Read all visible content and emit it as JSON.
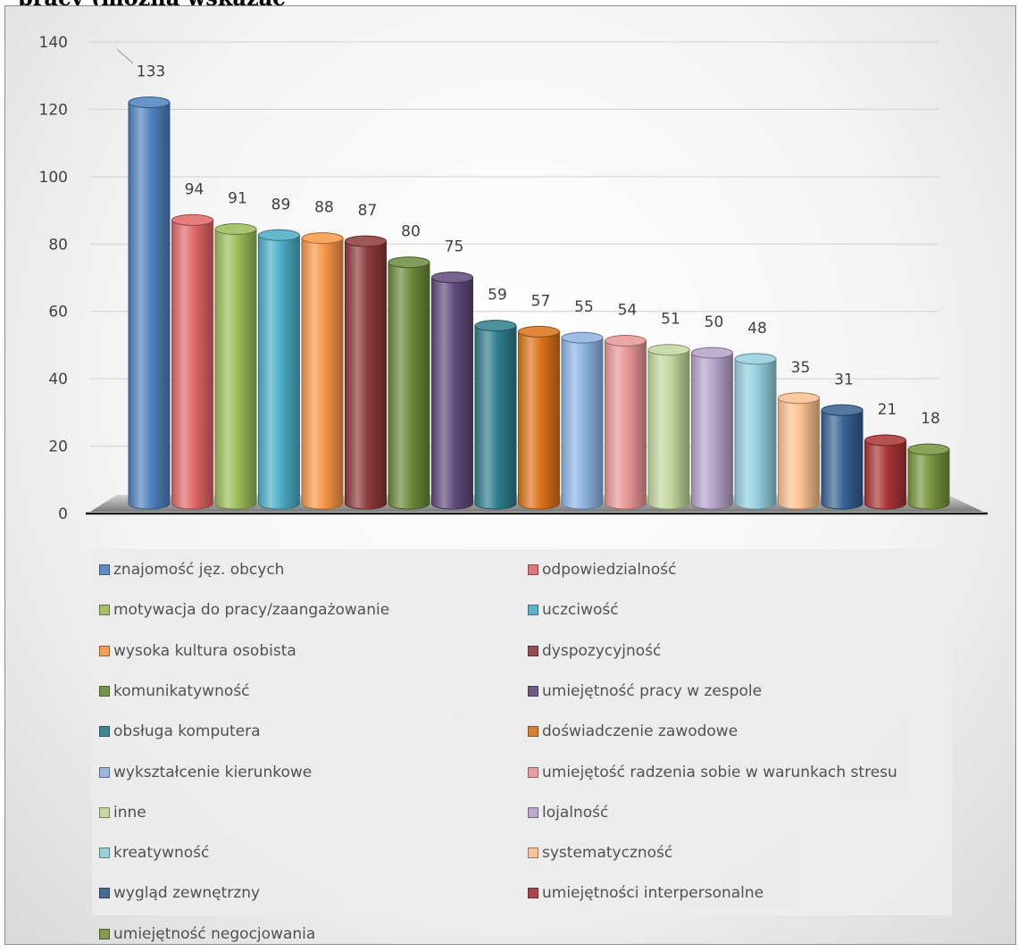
{
  "page": {
    "title": "pracy (można wskazać"
  },
  "chart_data": {
    "type": "bar",
    "style": "3d-cylinder",
    "ylim": [
      0,
      140
    ],
    "yticks": [
      "0",
      "20",
      "40",
      "60",
      "80",
      "100",
      "120",
      "140"
    ],
    "grid": true,
    "legend_position": "bottom",
    "categories": [
      "znajomość jęz. obcych",
      "odpowiedzialność",
      "motywacja do pracy/zaangażowanie",
      "uczciwość",
      "wysoka kultura osobista",
      "dyspozycyjność",
      "komunikatywność",
      "umiejętność pracy w zespole",
      "obsługa komputera",
      "doświadczenie zawodowe",
      "wykształcenie kierunkowe",
      "umiejętość radzenia sobie w warunkach stresu",
      "inne",
      "lojalność",
      "kreatywność",
      "systematyczność",
      "wygląd zewnętrzny",
      "umiejętności interpersonalne",
      "umiejętność negocjowania"
    ],
    "values": [
      133,
      94,
      91,
      89,
      88,
      87,
      80,
      75,
      59,
      57,
      55,
      54,
      51,
      50,
      48,
      35,
      31,
      21,
      18
    ],
    "colors": [
      "#4f81bd",
      "#e06666",
      "#9bbb59",
      "#4bacc6",
      "#f79646",
      "#8b3a3a",
      "#6a8a3a",
      "#5f4a7a",
      "#2e7d8c",
      "#d9731a",
      "#8db3e2",
      "#e69696",
      "#c3d69b",
      "#b3a2c7",
      "#93cddd",
      "#fac090",
      "#366092",
      "#a93333",
      "#77933c"
    ]
  }
}
